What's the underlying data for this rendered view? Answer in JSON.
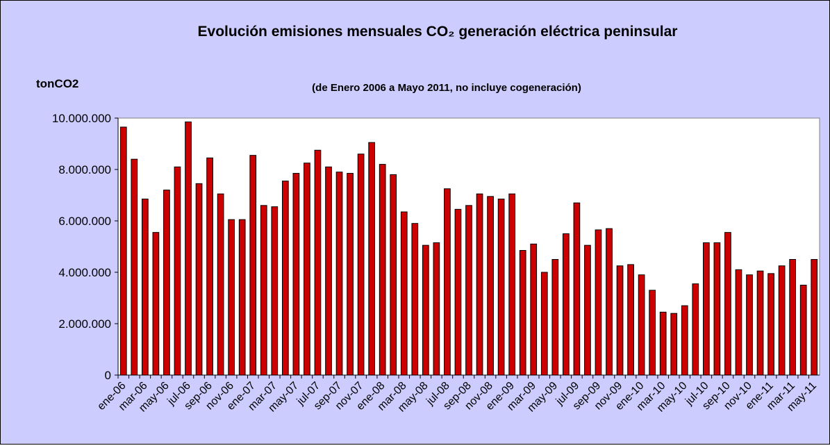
{
  "chart_data": {
    "type": "bar",
    "title": "Evolución emisiones mensuales CO₂ generación eléctrica peninsular",
    "subtitle": "(de Enero 2006 a Mayo 2011, no incluye cogeneración)",
    "y_label": "tonCO2",
    "categories": [
      "ene-06",
      null,
      "mar-06",
      null,
      "may-06",
      null,
      "jul-06",
      null,
      "sep-06",
      null,
      "nov-06",
      null,
      "ene-07",
      null,
      "mar-07",
      null,
      "may-07",
      null,
      "jul-07",
      null,
      "sep-07",
      null,
      "nov-07",
      null,
      "ene-08",
      null,
      "mar-08",
      null,
      "may-08",
      null,
      "jul-08",
      null,
      "sep-08",
      null,
      "nov-08",
      null,
      "ene-09",
      null,
      "mar-09",
      null,
      "may-09",
      null,
      "jul-09",
      null,
      "sep-09",
      null,
      "nov-09",
      null,
      "ene-10",
      null,
      "mar-10",
      null,
      "may-10",
      null,
      "jul-10",
      null,
      "sep-10",
      null,
      "nov-10",
      null,
      "ene-11",
      null,
      "mar-11",
      null,
      "may-11"
    ],
    "values": [
      9650000,
      8400000,
      6850000,
      5550000,
      7200000,
      8100000,
      9850000,
      7450000,
      8450000,
      7050000,
      6050000,
      6050000,
      8550000,
      6600000,
      6550000,
      7550000,
      7850000,
      8250000,
      8750000,
      8100000,
      7900000,
      7850000,
      8600000,
      9050000,
      8200000,
      7800000,
      6350000,
      5900000,
      5050000,
      5150000,
      7250000,
      6450000,
      6600000,
      7050000,
      6950000,
      6850000,
      7050000,
      4850000,
      5100000,
      4000000,
      4500000,
      5500000,
      6700000,
      5050000,
      5650000,
      5700000,
      4250000,
      4300000,
      3900000,
      3300000,
      2450000,
      2400000,
      2700000,
      3550000,
      5150000,
      5150000,
      5550000,
      4100000,
      3900000,
      4050000,
      3950000,
      4250000,
      4500000,
      3500000,
      4500000
    ],
    "color": "#cc0000",
    "ylim": [
      0,
      10000000
    ],
    "yticks": [
      0,
      {
        "value": 2000000,
        "label": "2.000.000"
      },
      {
        "value": 4000000,
        "label": "4.000.000"
      },
      {
        "value": 6000000,
        "label": "6.000.000"
      },
      {
        "value": 8000000,
        "label": "8.000.000"
      },
      {
        "value": 10000000,
        "label": "10.000.000"
      }
    ],
    "grid": false
  }
}
